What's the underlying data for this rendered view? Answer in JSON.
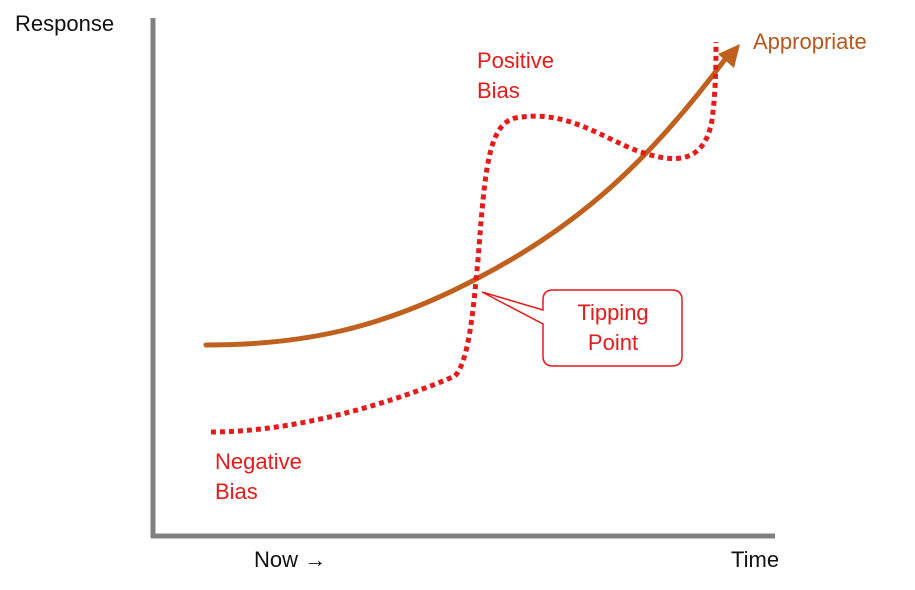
{
  "axes": {
    "y_label": "Response",
    "x_start_label": "Now",
    "x_start_arrow": "→",
    "x_end_label": "Time"
  },
  "curves": {
    "appropriate": {
      "label": "Appropriate",
      "color": "#b5561d"
    },
    "bias": {
      "color": "#e31b1b",
      "positive_line1": "Positive",
      "positive_line2": "Bias",
      "negative_line1": "Negative",
      "negative_line2": "Bias"
    }
  },
  "callout": {
    "line1": "Tipping",
    "line2": "Point"
  },
  "colors": {
    "axis": "#808080",
    "appropriate": "#b5561d",
    "bias": "#e31b1b"
  }
}
